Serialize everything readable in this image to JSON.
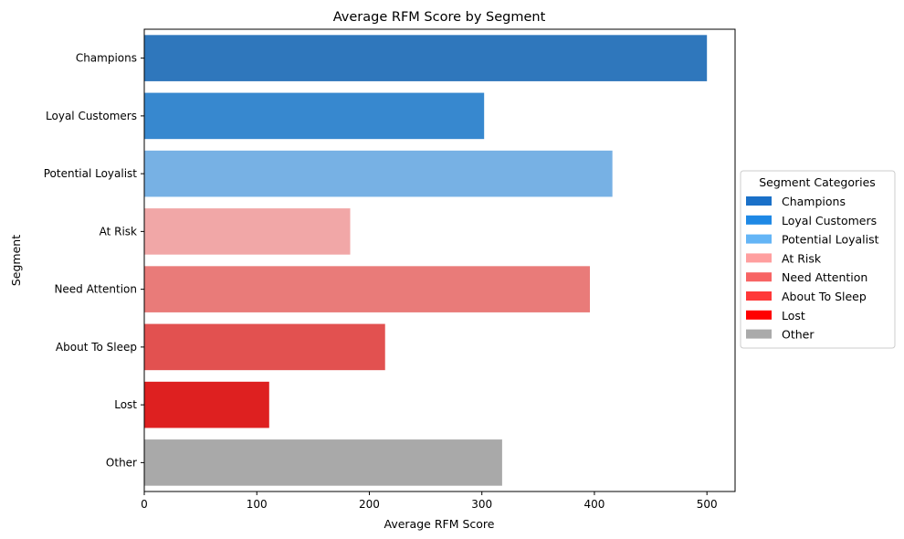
{
  "chart_data": {
    "type": "bar",
    "orientation": "horizontal",
    "title": "Average RFM Score by Segment",
    "xlabel": "Average RFM Score",
    "ylabel": "Segment",
    "xlim": [
      0,
      525
    ],
    "xticks": [
      0,
      100,
      200,
      300,
      400,
      500
    ],
    "grid": false,
    "categories": [
      "Champions",
      "Loyal Customers",
      "Potential Loyalist",
      "At Risk",
      "Need Attention",
      "About To Sleep",
      "Lost",
      "Other"
    ],
    "values": [
      500,
      302,
      416,
      183,
      396,
      214,
      111,
      318
    ],
    "bar_colors": [
      "#2f77bc",
      "#3788cf",
      "#77b1e4",
      "#f1a7a7",
      "#e97b79",
      "#e25150",
      "#de2020",
      "#a9a9a9"
    ],
    "legend": {
      "title": "Segment Categories",
      "placement": "center-right outside",
      "entries": [
        {
          "label": "Champions",
          "color": "#1a70c8"
        },
        {
          "label": "Loyal Customers",
          "color": "#1e88e5"
        },
        {
          "label": "Potential Loyalist",
          "color": "#64b5f6"
        },
        {
          "label": "At Risk",
          "color": "#ff9f9f"
        },
        {
          "label": "Need Attention",
          "color": "#f76464"
        },
        {
          "label": "About To Sleep",
          "color": "#ff3838"
        },
        {
          "label": "Lost",
          "color": "#ff0000"
        },
        {
          "label": "Other",
          "color": "#aaaaaa"
        }
      ]
    }
  }
}
